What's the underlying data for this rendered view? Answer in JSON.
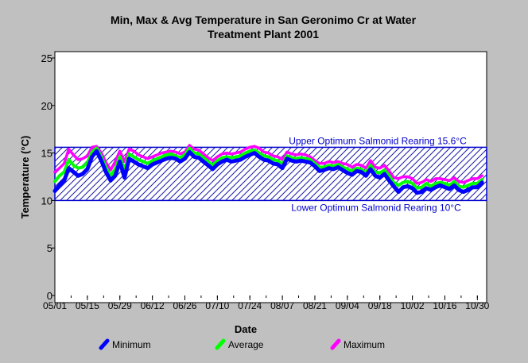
{
  "chart_data": {
    "type": "line",
    "title": "Min, Max & Avg Temperature in San Geronimo Cr at Water Treatment Plant 2001",
    "title_lines": [
      "Min, Max & Avg Temperature in San Geronimo Cr at Water",
      "Treatment Plant 2001"
    ],
    "xlabel": "Date",
    "ylabel": "Temperature (°C)",
    "ylim": [
      0,
      25
    ],
    "xlim": [
      "2001-05-01",
      "2001-11-03"
    ],
    "y_ticks": [
      0,
      5,
      10,
      15,
      20,
      25
    ],
    "x_ticks": [
      "05/01",
      "05/15",
      "05/29",
      "06/12",
      "06/26",
      "07/10",
      "07/24",
      "08/07",
      "08/21",
      "09/04",
      "09/18",
      "10/02",
      "10/16",
      "10/30"
    ],
    "x_tick_dates": [
      "2001-05-01",
      "2001-05-15",
      "2001-05-29",
      "2001-06-12",
      "2001-06-26",
      "2001-07-10",
      "2001-07-24",
      "2001-08-07",
      "2001-08-21",
      "2001-09-04",
      "2001-09-18",
      "2001-10-02",
      "2001-10-16",
      "2001-10-30"
    ],
    "grid": false,
    "legend_position": "bottom",
    "band": {
      "lower": 10,
      "upper": 15.6,
      "upper_label": "Upper Optimum Salmonid Rearing 15.6°C",
      "lower_label": "Lower Optimum Salmonid Rearing 10°C",
      "color": "#0000cc"
    },
    "series": [
      {
        "name": "Minimum",
        "color": "#0000ff",
        "x": [
          "2001-05-01",
          "2001-05-03",
          "2001-05-05",
          "2001-05-07",
          "2001-05-09",
          "2001-05-11",
          "2001-05-13",
          "2001-05-15",
          "2001-05-17",
          "2001-05-19",
          "2001-05-21",
          "2001-05-23",
          "2001-05-25",
          "2001-05-27",
          "2001-05-29",
          "2001-05-31",
          "2001-06-02",
          "2001-06-04",
          "2001-06-06",
          "2001-06-08",
          "2001-06-10",
          "2001-06-12",
          "2001-06-14",
          "2001-06-16",
          "2001-06-18",
          "2001-06-20",
          "2001-06-22",
          "2001-06-24",
          "2001-06-26",
          "2001-06-28",
          "2001-06-30",
          "2001-07-02",
          "2001-07-04",
          "2001-07-06",
          "2001-07-08",
          "2001-07-10",
          "2001-07-12",
          "2001-07-14",
          "2001-07-16",
          "2001-07-18",
          "2001-07-20",
          "2001-07-22",
          "2001-07-24",
          "2001-07-26",
          "2001-07-28",
          "2001-07-30",
          "2001-08-01",
          "2001-08-03",
          "2001-08-05",
          "2001-08-07",
          "2001-08-09",
          "2001-08-11",
          "2001-08-13",
          "2001-08-15",
          "2001-08-17",
          "2001-08-19",
          "2001-08-21",
          "2001-08-23",
          "2001-08-25",
          "2001-08-27",
          "2001-08-29",
          "2001-08-31",
          "2001-09-02",
          "2001-09-04",
          "2001-09-06",
          "2001-09-08",
          "2001-09-10",
          "2001-09-12",
          "2001-09-14",
          "2001-09-16",
          "2001-09-18",
          "2001-09-20",
          "2001-09-22",
          "2001-09-24",
          "2001-09-26",
          "2001-09-28",
          "2001-09-30",
          "2001-10-02",
          "2001-10-04",
          "2001-10-06",
          "2001-10-08",
          "2001-10-10",
          "2001-10-12",
          "2001-10-14",
          "2001-10-16",
          "2001-10-18",
          "2001-10-20",
          "2001-10-22",
          "2001-10-24",
          "2001-10-26",
          "2001-10-28",
          "2001-10-30",
          "2001-11-01"
        ],
        "values": [
          11.0,
          11.6,
          12.1,
          13.4,
          13.0,
          12.6,
          12.8,
          13.3,
          14.6,
          15.2,
          14.2,
          13.0,
          12.1,
          12.6,
          14.1,
          12.4,
          14.4,
          14.1,
          13.8,
          13.6,
          13.4,
          13.8,
          14.0,
          14.2,
          14.4,
          14.5,
          14.4,
          14.1,
          14.4,
          15.1,
          14.6,
          14.5,
          14.1,
          13.7,
          13.3,
          13.8,
          14.1,
          14.3,
          14.1,
          14.2,
          14.3,
          14.6,
          14.8,
          15.0,
          14.6,
          14.3,
          14.2,
          13.9,
          13.8,
          13.4,
          14.4,
          14.2,
          14.1,
          14.2,
          14.1,
          14.0,
          13.6,
          13.1,
          13.2,
          13.4,
          13.3,
          13.5,
          13.2,
          12.9,
          12.7,
          13.1,
          13.0,
          12.6,
          13.3,
          12.6,
          12.4,
          12.8,
          12.1,
          11.5,
          10.9,
          11.4,
          11.5,
          11.3,
          10.8,
          10.9,
          11.3,
          11.1,
          11.4,
          11.6,
          11.4,
          11.2,
          11.6,
          11.1,
          10.9,
          11.1,
          11.4,
          11.4,
          11.9
        ]
      },
      {
        "name": "Average",
        "color": "#00ff00",
        "x": [
          "2001-05-01",
          "2001-05-03",
          "2001-05-05",
          "2001-05-07",
          "2001-05-09",
          "2001-05-11",
          "2001-05-13",
          "2001-05-15",
          "2001-05-17",
          "2001-05-19",
          "2001-05-21",
          "2001-05-23",
          "2001-05-25",
          "2001-05-27",
          "2001-05-29",
          "2001-05-31",
          "2001-06-02",
          "2001-06-04",
          "2001-06-06",
          "2001-06-08",
          "2001-06-10",
          "2001-06-12",
          "2001-06-14",
          "2001-06-16",
          "2001-06-18",
          "2001-06-20",
          "2001-06-22",
          "2001-06-24",
          "2001-06-26",
          "2001-06-28",
          "2001-06-30",
          "2001-07-02",
          "2001-07-04",
          "2001-07-06",
          "2001-07-08",
          "2001-07-10",
          "2001-07-12",
          "2001-07-14",
          "2001-07-16",
          "2001-07-18",
          "2001-07-20",
          "2001-07-22",
          "2001-07-24",
          "2001-07-26",
          "2001-07-28",
          "2001-07-30",
          "2001-08-01",
          "2001-08-03",
          "2001-08-05",
          "2001-08-07",
          "2001-08-09",
          "2001-08-11",
          "2001-08-13",
          "2001-08-15",
          "2001-08-17",
          "2001-08-19",
          "2001-08-21",
          "2001-08-23",
          "2001-08-25",
          "2001-08-27",
          "2001-08-29",
          "2001-08-31",
          "2001-09-02",
          "2001-09-04",
          "2001-09-06",
          "2001-09-08",
          "2001-09-10",
          "2001-09-12",
          "2001-09-14",
          "2001-09-16",
          "2001-09-18",
          "2001-09-20",
          "2001-09-22",
          "2001-09-24",
          "2001-09-26",
          "2001-09-28",
          "2001-09-30",
          "2001-10-02",
          "2001-10-04",
          "2001-10-06",
          "2001-10-08",
          "2001-10-10",
          "2001-10-12",
          "2001-10-14",
          "2001-10-16",
          "2001-10-18",
          "2001-10-20",
          "2001-10-22",
          "2001-10-24",
          "2001-10-26",
          "2001-10-28",
          "2001-10-30",
          "2001-11-01"
        ],
        "values": [
          12.0,
          12.6,
          13.0,
          14.3,
          13.7,
          13.4,
          13.5,
          14.0,
          15.1,
          15.5,
          14.6,
          13.5,
          12.6,
          13.3,
          14.6,
          13.2,
          14.9,
          14.6,
          14.3,
          14.1,
          13.9,
          14.2,
          14.4,
          14.6,
          14.8,
          14.9,
          14.7,
          14.5,
          14.8,
          15.5,
          15.0,
          14.9,
          14.5,
          14.1,
          13.7,
          14.2,
          14.5,
          14.6,
          14.5,
          14.6,
          14.7,
          15.0,
          15.2,
          15.3,
          15.0,
          14.7,
          14.6,
          14.3,
          14.2,
          13.8,
          14.7,
          14.5,
          14.4,
          14.5,
          14.4,
          14.3,
          13.9,
          13.5,
          13.5,
          13.7,
          13.6,
          13.8,
          13.5,
          13.3,
          13.1,
          13.4,
          13.3,
          12.9,
          13.7,
          13.0,
          12.9,
          13.2,
          12.6,
          11.9,
          11.6,
          11.9,
          12.0,
          11.8,
          11.3,
          11.4,
          11.8,
          11.5,
          11.8,
          11.9,
          11.8,
          11.6,
          12.0,
          11.5,
          11.4,
          11.6,
          11.8,
          11.8,
          12.2
        ]
      },
      {
        "name": "Maximum",
        "color": "#ff00ff",
        "x": [
          "2001-05-01",
          "2001-05-03",
          "2001-05-05",
          "2001-05-07",
          "2001-05-09",
          "2001-05-11",
          "2001-05-13",
          "2001-05-15",
          "2001-05-17",
          "2001-05-19",
          "2001-05-21",
          "2001-05-23",
          "2001-05-25",
          "2001-05-27",
          "2001-05-29",
          "2001-05-31",
          "2001-06-02",
          "2001-06-04",
          "2001-06-06",
          "2001-06-08",
          "2001-06-10",
          "2001-06-12",
          "2001-06-14",
          "2001-06-16",
          "2001-06-18",
          "2001-06-20",
          "2001-06-22",
          "2001-06-24",
          "2001-06-26",
          "2001-06-28",
          "2001-06-30",
          "2001-07-02",
          "2001-07-04",
          "2001-07-06",
          "2001-07-08",
          "2001-07-10",
          "2001-07-12",
          "2001-07-14",
          "2001-07-16",
          "2001-07-18",
          "2001-07-20",
          "2001-07-22",
          "2001-07-24",
          "2001-07-26",
          "2001-07-28",
          "2001-07-30",
          "2001-08-01",
          "2001-08-03",
          "2001-08-05",
          "2001-08-07",
          "2001-08-09",
          "2001-08-11",
          "2001-08-13",
          "2001-08-15",
          "2001-08-17",
          "2001-08-19",
          "2001-08-21",
          "2001-08-23",
          "2001-08-25",
          "2001-08-27",
          "2001-08-29",
          "2001-08-31",
          "2001-09-02",
          "2001-09-04",
          "2001-09-06",
          "2001-09-08",
          "2001-09-10",
          "2001-09-12",
          "2001-09-14",
          "2001-09-16",
          "2001-09-18",
          "2001-09-20",
          "2001-09-22",
          "2001-09-24",
          "2001-09-26",
          "2001-09-28",
          "2001-09-30",
          "2001-10-02",
          "2001-10-04",
          "2001-10-06",
          "2001-10-08",
          "2001-10-10",
          "2001-10-12",
          "2001-10-14",
          "2001-10-16",
          "2001-10-18",
          "2001-10-20",
          "2001-10-22",
          "2001-10-24",
          "2001-10-26",
          "2001-10-28",
          "2001-10-30",
          "2001-11-01"
        ],
        "values": [
          13.0,
          13.4,
          13.9,
          15.4,
          14.8,
          14.3,
          14.4,
          14.7,
          15.6,
          15.7,
          15.0,
          14.0,
          13.2,
          14.1,
          15.2,
          14.1,
          15.4,
          15.2,
          14.8,
          14.6,
          14.4,
          14.6,
          14.8,
          15.0,
          15.1,
          15.2,
          15.1,
          14.9,
          15.1,
          15.8,
          15.4,
          15.3,
          14.9,
          14.5,
          14.2,
          14.6,
          14.9,
          15.0,
          14.9,
          15.0,
          15.1,
          15.4,
          15.6,
          15.7,
          15.5,
          15.1,
          15.0,
          14.7,
          14.6,
          14.3,
          15.1,
          14.9,
          14.8,
          14.9,
          14.8,
          14.6,
          14.2,
          13.9,
          13.9,
          14.1,
          14.0,
          14.1,
          13.9,
          13.8,
          13.5,
          13.8,
          13.7,
          13.4,
          14.2,
          13.5,
          13.4,
          13.7,
          13.1,
          12.4,
          12.3,
          12.5,
          12.5,
          12.3,
          11.8,
          11.9,
          12.2,
          12.0,
          12.3,
          12.3,
          12.2,
          12.1,
          12.4,
          12.0,
          11.9,
          12.1,
          12.3,
          12.3,
          12.6
        ]
      }
    ]
  }
}
